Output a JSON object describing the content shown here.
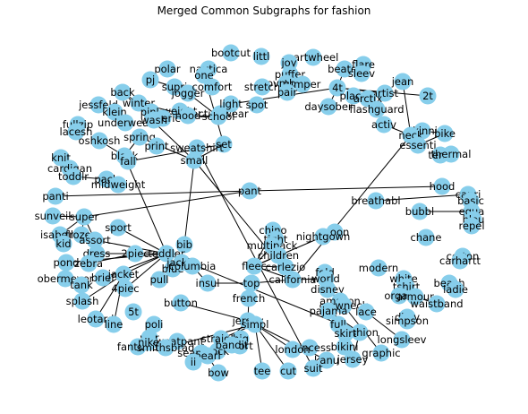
{
  "title": "Merged Common Subgraphs for fashion",
  "graph": {
    "nodes": [
      {
        "id": "bootcut"
      },
      {
        "id": "littl"
      },
      {
        "id": "cartwheel"
      },
      {
        "id": "polar"
      },
      {
        "id": "nautica"
      },
      {
        "id": "one"
      },
      {
        "id": "joy"
      },
      {
        "id": "puffer"
      },
      {
        "id": "beater"
      },
      {
        "id": "flare"
      },
      {
        "id": "sleev"
      },
      {
        "id": "jean"
      },
      {
        "id": "pj"
      },
      {
        "id": "supri"
      },
      {
        "id": "jogger"
      },
      {
        "id": "comfort"
      },
      {
        "id": "ovmbor"
      },
      {
        "id": "jumper"
      },
      {
        "id": "pair"
      },
      {
        "id": "4t"
      },
      {
        "id": "artist"
      },
      {
        "id": "2t"
      },
      {
        "id": "activewear"
      },
      {
        "id": "stretch"
      },
      {
        "id": "back"
      },
      {
        "id": "winter"
      },
      {
        "id": "light"
      },
      {
        "id": "spot"
      },
      {
        "id": "place"
      },
      {
        "id": "arctix"
      },
      {
        "id": "jessfeld"
      },
      {
        "id": "klein"
      },
      {
        "id": "pink"
      },
      {
        "id": "weight"
      },
      {
        "id": "daysober"
      },
      {
        "id": "flashguard"
      },
      {
        "id": "school"
      },
      {
        "id": "hood"
      },
      {
        "id": "americ"
      },
      {
        "id": "underwear"
      },
      {
        "id": "fullzip"
      },
      {
        "id": "lacesh"
      },
      {
        "id": "wash"
      },
      {
        "id": "activ"
      },
      {
        "id": "skinni"
      },
      {
        "id": "bike"
      },
      {
        "id": "oshkosh"
      },
      {
        "id": "spring"
      },
      {
        "id": "neck"
      },
      {
        "id": "essenti"
      },
      {
        "id": "print"
      },
      {
        "id": "set"
      },
      {
        "id": "term"
      },
      {
        "id": "thermal"
      },
      {
        "id": "black"
      },
      {
        "id": "fall"
      },
      {
        "id": "sweatshirt"
      },
      {
        "id": "small"
      },
      {
        "id": "knit"
      },
      {
        "id": "cardigan"
      },
      {
        "id": "toddlr"
      },
      {
        "id": "pack"
      },
      {
        "id": "midweight"
      },
      {
        "id": "hood2"
      },
      {
        "id": "pant"
      },
      {
        "id": "breathabl"
      },
      {
        "id": "capri"
      },
      {
        "id": "basic"
      },
      {
        "id": "equa"
      },
      {
        "id": "bubbl"
      },
      {
        "id": "blou"
      },
      {
        "id": "repel"
      },
      {
        "id": "panti"
      },
      {
        "id": "sunveil"
      },
      {
        "id": "super"
      },
      {
        "id": "isabella"
      },
      {
        "id": "frozen"
      },
      {
        "id": "kid"
      },
      {
        "id": "assort"
      },
      {
        "id": "sport"
      },
      {
        "id": "chino"
      },
      {
        "id": "tight"
      },
      {
        "id": "multipack"
      },
      {
        "id": "children"
      },
      {
        "id": "moon"
      },
      {
        "id": "nightgown"
      },
      {
        "id": "chane"
      },
      {
        "id": "cotton"
      },
      {
        "id": "carhartt"
      },
      {
        "id": "bib"
      },
      {
        "id": "toddler"
      },
      {
        "id": "dress"
      },
      {
        "id": "2piec"
      },
      {
        "id": "pond"
      },
      {
        "id": "zebra"
      },
      {
        "id": "obermeyer"
      },
      {
        "id": "tank"
      },
      {
        "id": "brief"
      },
      {
        "id": "jacket"
      },
      {
        "id": "4piec"
      },
      {
        "id": "pull"
      },
      {
        "id": "blue"
      },
      {
        "id": "jackie"
      },
      {
        "id": "columbia"
      },
      {
        "id": "fleec"
      },
      {
        "id": "carlezio"
      },
      {
        "id": "california"
      },
      {
        "id": "fold"
      },
      {
        "id": "world"
      },
      {
        "id": "modern"
      },
      {
        "id": "white"
      },
      {
        "id": "tshirt"
      },
      {
        "id": "beach"
      },
      {
        "id": "ladie"
      },
      {
        "id": "insul"
      },
      {
        "id": "top"
      },
      {
        "id": "disney"
      },
      {
        "id": "organ"
      },
      {
        "id": "armour"
      },
      {
        "id": "waistband"
      },
      {
        "id": "splash"
      },
      {
        "id": "5t"
      },
      {
        "id": "button"
      },
      {
        "id": "french"
      },
      {
        "id": "amazon"
      },
      {
        "id": "crewneck"
      },
      {
        "id": "pajama"
      },
      {
        "id": "lace"
      },
      {
        "id": "dkny"
      },
      {
        "id": "simpson"
      },
      {
        "id": "leotard"
      },
      {
        "id": "line"
      },
      {
        "id": "poli"
      },
      {
        "id": "jersey"
      },
      {
        "id": "simpl"
      },
      {
        "id": "full"
      },
      {
        "id": "fashion"
      },
      {
        "id": "longsleev"
      },
      {
        "id": "war"
      },
      {
        "id": "fantasia"
      },
      {
        "id": "sweatpant"
      },
      {
        "id": "graphic"
      },
      {
        "id": "nike"
      },
      {
        "id": "smithsbrad"
      },
      {
        "id": "straight"
      },
      {
        "id": "big"
      },
      {
        "id": "short"
      },
      {
        "id": "skirt"
      },
      {
        "id": "bikini"
      },
      {
        "id": "princess"
      },
      {
        "id": "kanu"
      },
      {
        "id": "jersey2"
      },
      {
        "id": "seamless"
      },
      {
        "id": "sock"
      },
      {
        "id": "bandit"
      },
      {
        "id": "pearl"
      },
      {
        "id": "ii"
      },
      {
        "id": "bow"
      },
      {
        "id": "tee"
      },
      {
        "id": "cut"
      },
      {
        "id": "suit"
      },
      {
        "id": "london"
      }
    ],
    "labels": {
      "bootcut": "bootcut",
      "littl": "littl",
      "cartwheel": "cartwheel",
      "polar": "polar",
      "nautica": "nautica",
      "one": "one",
      "joy": "joy",
      "puffer": "puffer",
      "beater": "beater",
      "flare": "flare",
      "sleev": "sleev",
      "jean": "jean",
      "pj": "pj",
      "supri": "supri",
      "jogger": "jogger",
      "comfort": "comfort",
      "ovmbor": "ovmbor",
      "jumper": "jumper",
      "pair": "pair",
      "4t": "4t",
      "artist": "artist",
      "2t": "2t",
      "activewear": "activewear",
      "stretch": "stretch",
      "back": "back",
      "winter": "winter",
      "light": "light",
      "spot": "spot",
      "place": "place",
      "arctix": "arctix",
      "jessfeld": "jessfeld",
      "klein": "klein",
      "pink": "pink",
      "weight": "weight",
      "daysober": "daysober",
      "flashguard": "flashguard",
      "school": "school",
      "hood": "hood",
      "americ": "americ",
      "underwear": "underwear",
      "fullzip": "fullzip",
      "lacesh": "lacesh",
      "wash": "wash",
      "activ": "activ",
      "skinni": "skinni",
      "bike": "bike",
      "oshkosh": "oshkosh",
      "spring": "spring",
      "neck": "neck",
      "essenti": "essenti",
      "print": "print",
      "set": "set",
      "term": "term",
      "thermal": "thermal",
      "black": "black",
      "fall": "fall",
      "sweatshirt": "sweatshirt",
      "small": "small",
      "knit": "knit",
      "cardigan": "cardigan",
      "toddlr": "toddlr",
      "pack": "pack",
      "midweight": "midweight",
      "hood2": "hood",
      "pant": "pant",
      "breathabl": "breathabl",
      "capri": "capri",
      "basic": "basic",
      "equa": "equa",
      "bubbl": "bubbl",
      "blou": "blou",
      "repel": "repel",
      "panti": "panti",
      "sunveil": "sunveil",
      "super": "super",
      "isabella": "isabella",
      "frozen": "frozen",
      "kid": "kid",
      "assort": "assort",
      "sport": "sport",
      "chino": "chino",
      "tight": "tight",
      "multipack": "multipack",
      "children": "children",
      "moon": "moon",
      "nightgown": "nightgown",
      "chane": "chane",
      "cotton": "cotton",
      "carhartt": "carhartt",
      "bib": "bib",
      "toddler": "toddler",
      "dress": "dress",
      "2piec": "2piec",
      "pond": "pond",
      "zebra": "zebra",
      "obermeyer": "obermeyer",
      "tank": "tank",
      "brief": "brief",
      "jacket": "jacket",
      "4piec": "4piec",
      "pull": "pull",
      "blue": "blue",
      "jackie": "jackie",
      "columbia": "columbia",
      "fleec": "fleec",
      "carlezio": "carlezio",
      "california": "california",
      "fold": "fold",
      "world": "world",
      "modern": "modern",
      "white": "white",
      "tshirt": "tshirt",
      "beach": "beach",
      "ladie": "ladie",
      "insul": "insul",
      "top": "top",
      "disney": "disney",
      "organ": "organ",
      "armour": "armour",
      "waistband": "waistband",
      "splash": "splash",
      "5t": "5t",
      "button": "button",
      "french": "french",
      "amazon": "amazon",
      "crewneck": "crewneck",
      "pajama": "pajama",
      "lace": "lace",
      "dkny": "dkny",
      "simpson": "simpson",
      "leotard": "leotard",
      "line": "line",
      "poli": "poli",
      "jersey": "jersey",
      "simpl": "simpl",
      "full": "full",
      "fashion": "fashion",
      "longsleev": "longsleev",
      "war": "war",
      "fantasia": "fantasia",
      "sweatpant": "sweatpant",
      "graphic": "graphic",
      "nike": "nike",
      "smithsbrad": "smithsbrad",
      "straight": "straight",
      "big": "big",
      "short": "short",
      "skirt": "skirt",
      "bikini": "bikini",
      "princess": "princess",
      "kanu": "kanu",
      "jersey2": "jersey",
      "seamless": "seamless",
      "sock": "sock",
      "bandit": "bandit",
      "pearl": "pearl",
      "ii": "ii",
      "bow": "bow",
      "tee": "tee",
      "cut": "cut",
      "suit": "suit",
      "london": "london"
    },
    "edges": [
      [
        "pant",
        "panti"
      ],
      [
        "pant",
        "hood2"
      ],
      [
        "set",
        "one"
      ],
      [
        "4t",
        "2t"
      ],
      [
        "4t",
        "light"
      ],
      [
        "4t",
        "artist"
      ],
      [
        "4t",
        "beater"
      ],
      [
        "4t",
        "daysober"
      ],
      [
        "place",
        "flashguard"
      ],
      [
        "arctix",
        "flashguard"
      ],
      [
        "activ",
        "neck"
      ],
      [
        "neck",
        "jean"
      ],
      [
        "essenti",
        "neck"
      ],
      [
        "skinni",
        "bike"
      ],
      [
        "term",
        "thermal"
      ],
      [
        "school",
        "jogger"
      ],
      [
        "school",
        "hood"
      ],
      [
        "hood",
        "pink"
      ],
      [
        "hood",
        "winter"
      ],
      [
        "back",
        "pink"
      ],
      [
        "spring",
        "black"
      ],
      [
        "fall",
        "black"
      ],
      [
        "black",
        "oshkosh"
      ],
      [
        "sweatshirt",
        "small"
      ],
      [
        "small",
        "back"
      ],
      [
        "small",
        "spring"
      ],
      [
        "small",
        "bib"
      ],
      [
        "small",
        "california"
      ],
      [
        "set",
        "fall"
      ],
      [
        "set",
        "small"
      ],
      [
        "pack",
        "toddlr"
      ],
      [
        "pack",
        "midweight"
      ],
      [
        "knit",
        "cardigan"
      ],
      [
        "breathabl",
        "capri"
      ],
      [
        "bubbl",
        "equa"
      ],
      [
        "super",
        "sunveil"
      ],
      [
        "super",
        "isabella"
      ],
      [
        "super",
        "frozen"
      ],
      [
        "super",
        "assort"
      ],
      [
        "toddler",
        "assort"
      ],
      [
        "toddler",
        "sport"
      ],
      [
        "toddler",
        "brief"
      ],
      [
        "toddler",
        "dress"
      ],
      [
        "toddler",
        "pond"
      ],
      [
        "toddler",
        "jacket"
      ],
      [
        "toddler",
        "4piec"
      ],
      [
        "toddler",
        "black"
      ],
      [
        "toddler",
        "fashion"
      ],
      [
        "jacket",
        "splash"
      ],
      [
        "jacket",
        "line"
      ],
      [
        "jacket",
        "leotard"
      ],
      [
        "2piec",
        "zebra"
      ],
      [
        "columbia",
        "insul"
      ],
      [
        "columbia",
        "jackie"
      ],
      [
        "insul",
        "top"
      ],
      [
        "top",
        "california"
      ],
      [
        "california",
        "fleec"
      ],
      [
        "california",
        "world"
      ],
      [
        "fleec",
        "carlezio"
      ],
      [
        "children",
        "fleec"
      ],
      [
        "moon",
        "nightgown"
      ],
      [
        "nightgown",
        "fleec"
      ],
      [
        "fold",
        "world"
      ],
      [
        "disney",
        "amazon"
      ],
      [
        "crewneck",
        "graphic"
      ],
      [
        "pajama",
        "fashion"
      ],
      [
        "lace",
        "longsleev"
      ],
      [
        "white",
        "tshirt"
      ],
      [
        "armour",
        "organ"
      ],
      [
        "armour",
        "waistband"
      ],
      [
        "simpl",
        "jersey"
      ],
      [
        "simpl",
        "cut"
      ],
      [
        "simpl",
        "tee"
      ],
      [
        "simpl",
        "straight"
      ],
      [
        "simpl",
        "london"
      ],
      [
        "simpl",
        "kanu"
      ],
      [
        "simpl",
        "smithsbrad"
      ],
      [
        "jersey",
        "sock"
      ],
      [
        "jersey",
        "french"
      ],
      [
        "sweatpant",
        "fantasia"
      ],
      [
        "pearl",
        "ii"
      ],
      [
        "pearl",
        "bow"
      ],
      [
        "dkny",
        "simpson"
      ],
      [
        "multipack",
        "fleec"
      ],
      [
        "chino",
        "fleec"
      ],
      [
        "sweatshirt",
        "suit"
      ],
      [
        "fashion",
        "jersey2"
      ],
      [
        "neck",
        "california"
      ],
      [
        "bike",
        "essenti"
      ],
      [
        "french",
        "top"
      ],
      [
        "pant",
        "super"
      ],
      [
        "pj",
        "supri"
      ],
      [
        "nike",
        "war"
      ],
      [
        "button",
        "jersey"
      ],
      [
        "big",
        "short"
      ]
    ]
  }
}
